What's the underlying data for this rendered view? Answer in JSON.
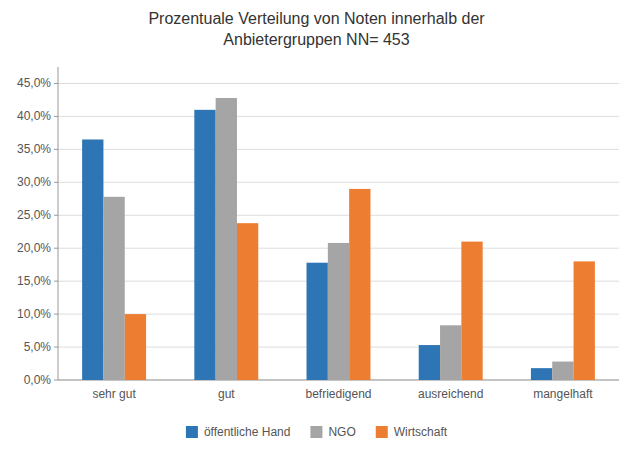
{
  "chart_data": {
    "type": "bar",
    "title": "Prozentuale Verteilung von Noten innerhalb der\nAnbietergruppen NN= 453",
    "categories": [
      "sehr gut",
      "gut",
      "befriedigend",
      "ausreichend",
      "mangelhaft"
    ],
    "series": [
      {
        "name": "öffentliche Hand",
        "color": "#2E75B6",
        "values": [
          0.365,
          0.41,
          0.178,
          0.053,
          0.018
        ]
      },
      {
        "name": "NGO",
        "color": "#A5A5A5",
        "values": [
          0.278,
          0.428,
          0.208,
          0.083,
          0.028
        ]
      },
      {
        "name": "Wirtschaft",
        "color": "#ED7D31",
        "values": [
          0.1,
          0.238,
          0.29,
          0.21,
          0.18
        ]
      }
    ],
    "ylim": [
      0.0,
      0.475
    ],
    "yticks": [
      {
        "value": 0.0,
        "label": "0,0%"
      },
      {
        "value": 0.05,
        "label": "5,0%"
      },
      {
        "value": 0.1,
        "label": "10,0%"
      },
      {
        "value": 0.15,
        "label": "15,0%"
      },
      {
        "value": 0.2,
        "label": "20,0%"
      },
      {
        "value": 0.25,
        "label": "25,0%"
      },
      {
        "value": 0.3,
        "label": "30,0%"
      },
      {
        "value": 0.35,
        "label": "35,0%"
      },
      {
        "value": 0.4,
        "label": "40,0%"
      },
      {
        "value": 0.45,
        "label": "45,0%"
      }
    ],
    "grid": true,
    "legend": "bottom"
  }
}
